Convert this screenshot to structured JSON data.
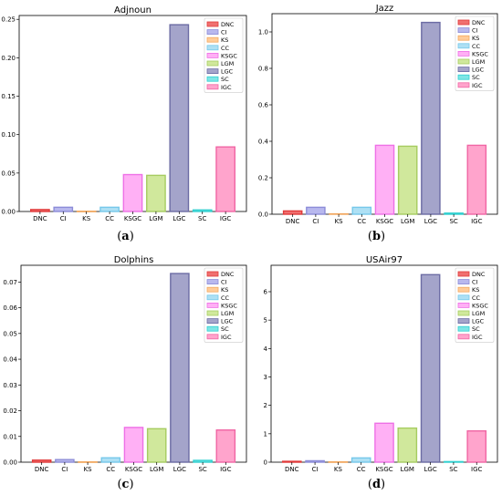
{
  "colors": {
    "DNC": "#f07070",
    "CI": "#b8b8ee",
    "KS": "#ffcc99",
    "CC": "#aee0f4",
    "KSGC": "#ffb0f5",
    "LGM": "#d0e89c",
    "LGC": "#a4a4ca",
    "SC": "#7ee6e6",
    "IGC": "#ffa4cc"
  },
  "edge_colors": {
    "DNC": "#e03a3a",
    "CI": "#8c8cd8",
    "KS": "#f2a860",
    "CC": "#76c8ea",
    "KSGC": "#ee70e6",
    "LGM": "#a6cc60",
    "LGC": "#6c6ca4",
    "SC": "#30d0d0",
    "IGC": "#f066a4"
  },
  "captions": [
    {
      "open": "(",
      "letter": "a",
      "close": ")"
    },
    {
      "open": "(",
      "letter": "b",
      "close": ")"
    },
    {
      "open": "(",
      "letter": "c",
      "close": ")"
    },
    {
      "open": "(",
      "letter": "d",
      "close": ")"
    }
  ],
  "chart_data": [
    {
      "type": "bar",
      "title": "Adjnoun",
      "categories": [
        "DNC",
        "CI",
        "KS",
        "CC",
        "KSGC",
        "LGM",
        "LGC",
        "SC",
        "IGC"
      ],
      "values": [
        0.0025,
        0.0055,
        0.0003,
        0.0055,
        0.048,
        0.047,
        0.243,
        0.002,
        0.084
      ],
      "ylim": [
        0,
        0.255
      ],
      "yticks": [
        0.0,
        0.05,
        0.1,
        0.15,
        0.2,
        0.25
      ],
      "ytick_labels": [
        "0.00",
        "0.05",
        "0.10",
        "0.15",
        "0.20",
        "0.25"
      ],
      "legend": [
        "DNC",
        "CI",
        "KS",
        "CC",
        "KSGC",
        "LGM",
        "LGC",
        "SC",
        "IGC"
      ],
      "legend_position": "top-right"
    },
    {
      "type": "bar",
      "title": "Jazz",
      "categories": [
        "DNC",
        "CI",
        "KS",
        "CC",
        "KSGC",
        "LGM",
        "LGC",
        "SC",
        "IGC"
      ],
      "values": [
        0.018,
        0.038,
        0.002,
        0.038,
        0.378,
        0.373,
        1.052,
        0.006,
        0.378
      ],
      "ylim": [
        0,
        1.1
      ],
      "yticks": [
        0.0,
        0.2,
        0.4,
        0.6,
        0.8,
        1.0
      ],
      "ytick_labels": [
        "0.0",
        "0.2",
        "0.4",
        "0.6",
        "0.8",
        "1.0"
      ],
      "legend": [
        "DNC",
        "CI",
        "KS",
        "CC",
        "KSGC",
        "LGM",
        "LGC",
        "SC",
        "IGC"
      ],
      "legend_position": "top-right"
    },
    {
      "type": "bar",
      "title": "Dolphins",
      "categories": [
        "DNC",
        "CI",
        "KS",
        "CC",
        "KSGC",
        "LGM",
        "LGC",
        "SC",
        "IGC"
      ],
      "values": [
        0.0008,
        0.001,
        0.0001,
        0.0017,
        0.0135,
        0.013,
        0.0733,
        0.0007,
        0.0125
      ],
      "ylim": [
        0,
        0.0765
      ],
      "yticks": [
        0.0,
        0.01,
        0.02,
        0.03,
        0.04,
        0.05,
        0.06,
        0.07
      ],
      "ytick_labels": [
        "0.00",
        "0.01",
        "0.02",
        "0.03",
        "0.04",
        "0.05",
        "0.06",
        "0.07"
      ],
      "legend": [
        "DNC",
        "CI",
        "KS",
        "CC",
        "KSGC",
        "LGM",
        "LGC",
        "SC",
        "IGC"
      ],
      "legend_position": "top-right"
    },
    {
      "type": "bar",
      "title": "USAir97",
      "categories": [
        "DNC",
        "CI",
        "KS",
        "CC",
        "KSGC",
        "LGM",
        "LGC",
        "SC",
        "IGC"
      ],
      "values": [
        0.03,
        0.05,
        0.01,
        0.15,
        1.37,
        1.2,
        6.6,
        0.02,
        1.1
      ],
      "ylim": [
        0,
        6.93
      ],
      "yticks": [
        0,
        1,
        2,
        3,
        4,
        5,
        6
      ],
      "ytick_labels": [
        "0",
        "1",
        "2",
        "3",
        "4",
        "5",
        "6"
      ],
      "legend": [
        "DNC",
        "CI",
        "KS",
        "CC",
        "KSGC",
        "LGM",
        "LGC",
        "SC",
        "IGC"
      ],
      "legend_position": "top-right"
    }
  ]
}
